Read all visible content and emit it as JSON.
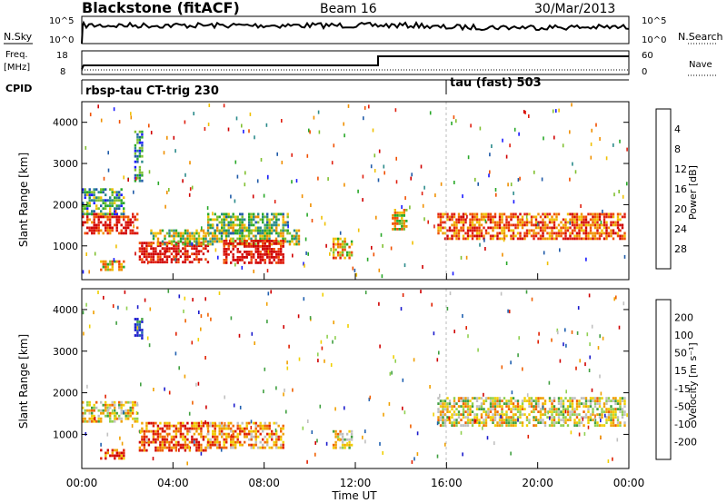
{
  "header": {
    "site": "Blackstone (fitACF)",
    "beam": "Beam 16",
    "date": "30/Mar/2013"
  },
  "noise_panel": {
    "left_label": "N.Sky",
    "right_label": "N.Search",
    "left_ticks": [
      "10^5",
      "10^0"
    ],
    "right_ticks": [
      "10^5",
      "10^0"
    ]
  },
  "freq_panel": {
    "left_label_1": "Freq.",
    "left_label_2": "[MHz]",
    "right_label": "Nave",
    "left_ticks": [
      "18",
      "8"
    ],
    "right_ticks": [
      "60",
      "0"
    ]
  },
  "cpid": {
    "label": "CPID",
    "entries": [
      {
        "time_h": 0.0,
        "name": "rbsp-tau CT-trig 230"
      },
      {
        "time_h": 16.0,
        "name": "tau (fast) 503"
      }
    ]
  },
  "axes": {
    "ylabel": "Slant Range [km]",
    "xlabel": "Time UT",
    "y_ticks": [
      "1000",
      "2000",
      "3000",
      "4000"
    ],
    "x_ticks": [
      "00:00",
      "04:00",
      "08:00",
      "12:00",
      "16:00",
      "20:00",
      "00:00"
    ]
  },
  "power_colorbar": {
    "label": "Power [dB]",
    "ticks": [
      "4",
      "8",
      "12",
      "16",
      "20",
      "24",
      "28"
    ],
    "colors": [
      "#1a1aff",
      "#1f5aa8",
      "#2a8a8a",
      "#28a828",
      "#80c030",
      "#f0c000",
      "#f09000",
      "#f05000",
      "#e02010",
      "#d00000"
    ]
  },
  "velocity_colorbar": {
    "label": "Velocity [m s⁻¹]",
    "ticks": [
      "200",
      "100",
      "50",
      "15",
      "-15",
      "-50",
      "-100",
      "-200"
    ],
    "colors": [
      "#1a1acc",
      "#2060b0",
      "#40a040",
      "#90d050",
      "#c0c0c0",
      "#f0d000",
      "#f0a000",
      "#f06000",
      "#e02000",
      "#d00000"
    ]
  },
  "chart_data": {
    "type": "heatmap",
    "x_range_hours": [
      0,
      24
    ],
    "y_range_km": [
      180,
      4500
    ],
    "power_panel": {
      "regions": [
        {
          "t": [
            0.0,
            2.4
          ],
          "r": [
            1300,
            1800
          ],
          "level": 0.85
        },
        {
          "t": [
            0.0,
            1.8
          ],
          "r": [
            1800,
            2400
          ],
          "level": 0.3
        },
        {
          "t": [
            0.8,
            1.8
          ],
          "r": [
            400,
            650
          ],
          "level": 0.6
        },
        {
          "t": [
            2.3,
            2.6
          ],
          "r": [
            2600,
            3800
          ],
          "level": 0.25
        },
        {
          "t": [
            2.5,
            5.5
          ],
          "r": [
            600,
            1100
          ],
          "level": 0.95
        },
        {
          "t": [
            3.0,
            9.5
          ],
          "r": [
            1050,
            1400
          ],
          "level": 0.45
        },
        {
          "t": [
            6.2,
            8.8
          ],
          "r": [
            600,
            1150
          ],
          "level": 0.95
        },
        {
          "t": [
            5.5,
            9.0
          ],
          "r": [
            1300,
            1800
          ],
          "level": 0.4
        },
        {
          "t": [
            11.0,
            11.8
          ],
          "r": [
            700,
            1200
          ],
          "level": 0.6
        },
        {
          "t": [
            13.6,
            14.2
          ],
          "r": [
            1400,
            1900
          ],
          "level": 0.55
        },
        {
          "t": [
            15.6,
            23.8
          ],
          "r": [
            1200,
            1800
          ],
          "level": 0.75
        }
      ]
    },
    "velocity_panel": {
      "regions": [
        {
          "t": [
            0.0,
            2.4
          ],
          "r": [
            1300,
            1800
          ],
          "level": 0.5
        },
        {
          "t": [
            0.8,
            1.8
          ],
          "r": [
            400,
            650
          ],
          "level": 0.8
        },
        {
          "t": [
            2.3,
            2.6
          ],
          "r": [
            3300,
            3800
          ],
          "level": 0.05
        },
        {
          "t": [
            2.5,
            5.5
          ],
          "r": [
            600,
            1300
          ],
          "level": 0.8
        },
        {
          "t": [
            5.5,
            8.8
          ],
          "r": [
            700,
            1300
          ],
          "level": 0.65
        },
        {
          "t": [
            11.0,
            11.8
          ],
          "r": [
            700,
            1100
          ],
          "level": 0.5
        },
        {
          "t": [
            15.6,
            23.8
          ],
          "r": [
            1200,
            1900
          ],
          "level": 0.5
        }
      ]
    }
  }
}
